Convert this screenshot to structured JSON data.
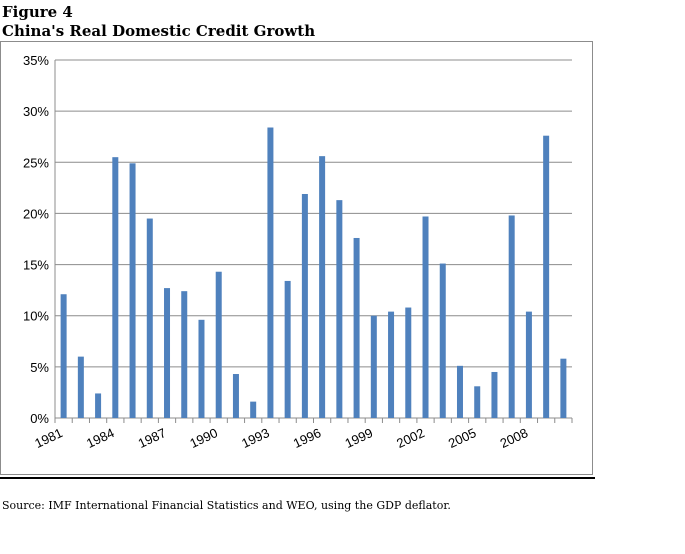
{
  "figure_label": "Figure 4",
  "source_note": "Source:  IMF International Financial Statistics and WEO, using the GDP deflator.",
  "chart_data": {
    "type": "bar",
    "title": "China's Real Domestic Credit Growth",
    "xlabel": "",
    "ylabel": "",
    "ylim": [
      0,
      35
    ],
    "grid": true,
    "bar_color": "#4f81bd",
    "grid_color": "#8c8c8c",
    "y_ticks": [
      "0%",
      "5%",
      "10%",
      "15%",
      "20%",
      "25%",
      "30%",
      "35%"
    ],
    "x_tick_labels": [
      "1981",
      "1984",
      "1987",
      "1990",
      "1993",
      "1996",
      "1999",
      "2002",
      "2005",
      "2008"
    ],
    "categories": [
      "1981",
      "1982",
      "1983",
      "1984",
      "1985",
      "1986",
      "1987",
      "1988",
      "1989",
      "1990",
      "1991",
      "1992",
      "1993",
      "1994",
      "1995",
      "1996",
      "1997",
      "1998",
      "1999",
      "2000",
      "2001",
      "2002",
      "2003",
      "2004",
      "2005",
      "2006",
      "2007",
      "2008",
      "2009",
      "2010"
    ],
    "values": [
      12.1,
      6.0,
      2.4,
      25.5,
      24.9,
      19.5,
      12.7,
      12.4,
      9.6,
      14.3,
      4.3,
      1.6,
      28.4,
      13.4,
      21.9,
      25.6,
      21.3,
      17.6,
      10.0,
      10.4,
      10.8,
      19.7,
      15.1,
      5.1,
      3.1,
      4.5,
      19.8,
      10.4,
      27.6,
      5.8
    ]
  }
}
